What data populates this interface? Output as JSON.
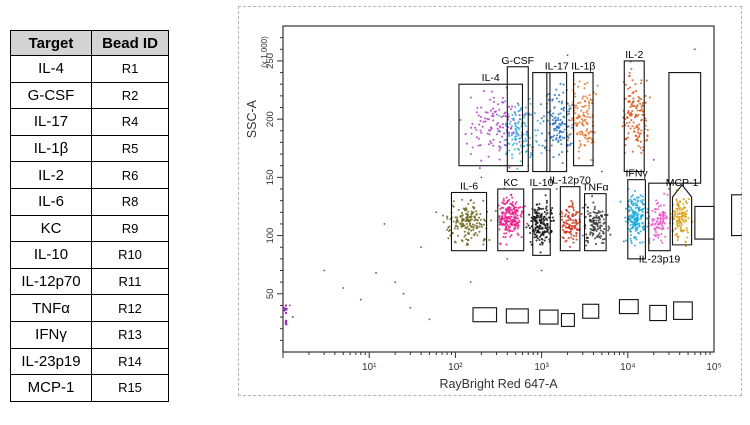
{
  "table": {
    "header_target": "Target",
    "header_bead": "Bead ID",
    "rows": [
      {
        "target": "IL-4",
        "bead": "R1"
      },
      {
        "target": "G-CSF",
        "bead": "R2"
      },
      {
        "target": "IL-17",
        "bead": "R4"
      },
      {
        "target": "IL-1β",
        "bead": "R5"
      },
      {
        "target": "IL-2",
        "bead": "R6"
      },
      {
        "target": "IL-6",
        "bead": "R8"
      },
      {
        "target": "KC",
        "bead": "R9"
      },
      {
        "target": "IL-10",
        "bead": "R10"
      },
      {
        "target": "IL-12p70",
        "bead": "R11"
      },
      {
        "target": "TNFα",
        "bead": "R12"
      },
      {
        "target": "IFNγ",
        "bead": "R13"
      },
      {
        "target": "IL-23p19",
        "bead": "R14"
      },
      {
        "target": "MCP-1",
        "bead": "R15"
      }
    ]
  },
  "chart_data": {
    "type": "scatter",
    "xlabel": "RayBright Red 647-A",
    "ylabel": "SSC-A",
    "y_multiplier": "(x 1,000)",
    "x_scale": "log",
    "xlim": [
      1,
      100000
    ],
    "ylim": [
      0,
      280
    ],
    "x_ticks": [
      10,
      100,
      1000,
      10000,
      100000
    ],
    "x_tick_labels": [
      "10¹",
      "10²",
      "10³",
      "10⁴",
      "10⁵"
    ],
    "y_ticks": [
      50,
      100,
      150,
      200,
      250
    ],
    "y_tick_labels": [
      "50",
      "100",
      "150",
      "200",
      "250"
    ],
    "grid": false,
    "populations": [
      {
        "name": "IL-4",
        "color": "#b43cc8",
        "x": 290,
        "y": 195,
        "n": 120,
        "spread_x": 0.16,
        "spread_y": 14
      },
      {
        "name": "G-CSF",
        "color": "#3aaed8",
        "x": 550,
        "y": 190,
        "n": 130,
        "spread_x": 0.1,
        "spread_y": 13
      },
      {
        "name": "IL-17",
        "color": "#2c74c4",
        "x": 1500,
        "y": 195,
        "n": 140,
        "spread_x": 0.09,
        "spread_y": 14
      },
      {
        "name": "IL-1β",
        "color": "#e8742a",
        "x": 3100,
        "y": 200,
        "n": 130,
        "spread_x": 0.08,
        "spread_y": 14
      },
      {
        "name": "IL-2",
        "color": "#d8581a",
        "x": 12000,
        "y": 205,
        "n": 140,
        "spread_x": 0.09,
        "spread_y": 17
      },
      {
        "name": "IL-6",
        "color": "#6e6a1e",
        "x": 140,
        "y": 112,
        "n": 170,
        "spread_x": 0.11,
        "spread_y": 9
      },
      {
        "name": "KC",
        "color": "#e81e8c",
        "x": 430,
        "y": 115,
        "n": 200,
        "spread_x": 0.07,
        "spread_y": 9
      },
      {
        "name": "IL-10",
        "color": "#141414",
        "x": 1000,
        "y": 110,
        "n": 170,
        "spread_x": 0.07,
        "spread_y": 9
      },
      {
        "name": "IL-12p70",
        "color": "#cc3a1e",
        "x": 2200,
        "y": 110,
        "n": 110,
        "spread_x": 0.06,
        "spread_y": 9
      },
      {
        "name": "TNFα",
        "color": "#3a3a3a",
        "x": 4300,
        "y": 110,
        "n": 120,
        "spread_x": 0.07,
        "spread_y": 9
      },
      {
        "name": "IFNγ",
        "color": "#18a8d8",
        "x": 12500,
        "y": 115,
        "n": 170,
        "spread_x": 0.06,
        "spread_y": 10
      },
      {
        "name": "IL-23p19",
        "color": "#e852c8",
        "x": 23000,
        "y": 112,
        "n": 90,
        "spread_x": 0.06,
        "spread_y": 8
      },
      {
        "name": "MCP-1",
        "color": "#d8a010",
        "x": 41000,
        "y": 115,
        "n": 120,
        "spread_x": 0.05,
        "spread_y": 9
      }
    ],
    "gates": [
      {
        "label": "IL-4",
        "x0": 110,
        "x1": 600,
        "y0": 160,
        "y1": 230,
        "label_pos": "top"
      },
      {
        "label": "G-CSF",
        "x0": 400,
        "x1": 700,
        "y0": 155,
        "y1": 245,
        "label_pos": "top"
      },
      {
        "label": "",
        "x0": 790,
        "x1": 1250,
        "y0": 155,
        "y1": 240,
        "label_pos": "none"
      },
      {
        "label": "IL-17",
        "x0": 1150,
        "x1": 1950,
        "y0": 155,
        "y1": 240,
        "label_pos": "top"
      },
      {
        "label": "IL-1β",
        "x0": 2350,
        "x1": 3950,
        "y0": 160,
        "y1": 240,
        "label_pos": "top"
      },
      {
        "label": "IL-2",
        "x0": 9100,
        "x1": 15500,
        "y0": 155,
        "y1": 250,
        "label_pos": "top"
      },
      {
        "label": "",
        "x0": 30000,
        "x1": 70000,
        "y0": 145,
        "y1": 240,
        "label_pos": "none"
      },
      {
        "label": "IL-6",
        "x0": 90,
        "x1": 230,
        "y0": 87,
        "y1": 137,
        "label_pos": "top"
      },
      {
        "label": "KC",
        "x0": 310,
        "x1": 620,
        "y0": 87,
        "y1": 140,
        "label_pos": "top"
      },
      {
        "label": "IL-10",
        "x0": 790,
        "x1": 1260,
        "y0": 83,
        "y1": 140,
        "label_pos": "top"
      },
      {
        "label": "IL-12p70",
        "x0": 1650,
        "x1": 2780,
        "y0": 87,
        "y1": 142,
        "label_pos": "top"
      },
      {
        "label": "TNFα",
        "x0": 3150,
        "x1": 5600,
        "y0": 87,
        "y1": 136,
        "label_pos": "top"
      },
      {
        "label": "IFNγ",
        "x0": 10000,
        "x1": 16000,
        "y0": 80,
        "y1": 148,
        "label_pos": "top"
      },
      {
        "label": "IL-23p19",
        "x0": 17500,
        "x1": 31000,
        "y0": 87,
        "y1": 145,
        "label_pos": "bottom"
      },
      {
        "label": "MCP-1",
        "x0": 33000,
        "x1": 55000,
        "y0": 92,
        "y1": 140,
        "label_pos": "top",
        "shape": "pentagon"
      },
      {
        "label": "",
        "x0": 60000,
        "x1": 100000,
        "y0": 97,
        "y1": 125,
        "label_pos": "none"
      },
      {
        "label": "",
        "x0": 160000,
        "x1": 300000,
        "y0": 100,
        "y1": 135,
        "label_pos": "none"
      },
      {
        "label": "",
        "x0": 160,
        "x1": 300,
        "y0": 26,
        "y1": 38,
        "label_pos": "none"
      },
      {
        "label": "",
        "x0": 390,
        "x1": 700,
        "y0": 25,
        "y1": 37,
        "label_pos": "none"
      },
      {
        "label": "",
        "x0": 950,
        "x1": 1550,
        "y0": 24,
        "y1": 36,
        "label_pos": "none"
      },
      {
        "label": "",
        "x0": 1700,
        "x1": 2400,
        "y0": 22,
        "y1": 33,
        "label_pos": "none"
      },
      {
        "label": "",
        "x0": 3000,
        "x1": 4600,
        "y0": 29,
        "y1": 41,
        "label_pos": "none"
      },
      {
        "label": "",
        "x0": 8000,
        "x1": 13200,
        "y0": 33,
        "y1": 45,
        "label_pos": "none"
      },
      {
        "label": "",
        "x0": 18000,
        "x1": 28000,
        "y0": 27,
        "y1": 40,
        "label_pos": "none"
      },
      {
        "label": "",
        "x0": 34000,
        "x1": 56000,
        "y0": 28,
        "y1": 43,
        "label_pos": "none"
      }
    ]
  }
}
